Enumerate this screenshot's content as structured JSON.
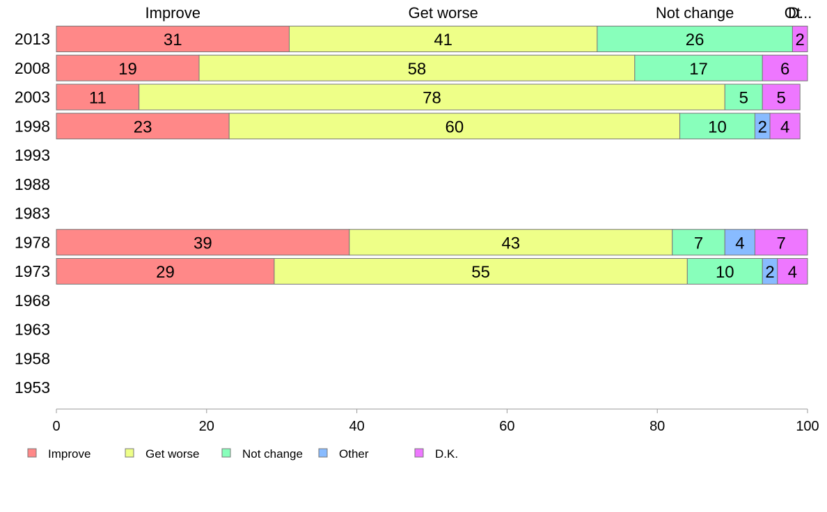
{
  "chart_data": {
    "type": "bar",
    "orientation": "horizontal",
    "stacked": true,
    "categories": [
      "2013",
      "2008",
      "2003",
      "1998",
      "1993",
      "1988",
      "1983",
      "1978",
      "1973",
      "1968",
      "1963",
      "1958",
      "1953"
    ],
    "series": [
      {
        "name": "Improve",
        "color": "#ff8888",
        "values": [
          31,
          19,
          11,
          23,
          null,
          null,
          null,
          39,
          29,
          null,
          null,
          null,
          null
        ]
      },
      {
        "name": "Get worse",
        "color": "#eeff88",
        "values": [
          41,
          58,
          78,
          60,
          null,
          null,
          null,
          43,
          55,
          null,
          null,
          null,
          null
        ]
      },
      {
        "name": "Not change",
        "color": "#88ffbb",
        "values": [
          26,
          17,
          5,
          10,
          null,
          null,
          null,
          7,
          10,
          null,
          null,
          null,
          null
        ]
      },
      {
        "name": "Other",
        "color": "#88bbff",
        "values": [
          0,
          0,
          0,
          2,
          null,
          null,
          null,
          4,
          2,
          null,
          null,
          null,
          null
        ]
      },
      {
        "name": "D.K.",
        "color": "#ee77ff",
        "values": [
          2,
          6,
          5,
          4,
          null,
          null,
          null,
          7,
          4,
          null,
          null,
          null,
          null
        ]
      }
    ],
    "top_labels": [
      "Improve",
      "Get worse",
      "Not change",
      "Ot",
      "D..."
    ],
    "xlim": [
      0,
      100
    ],
    "xticks": [
      "0",
      "20",
      "40",
      "60",
      "80",
      "100"
    ],
    "xlabel": "",
    "ylabel": "",
    "title": "",
    "grid": false,
    "legend": {
      "position": "bottom-left",
      "items": [
        "Improve",
        "Get worse",
        "Not change",
        "Other",
        "D.K."
      ]
    }
  }
}
